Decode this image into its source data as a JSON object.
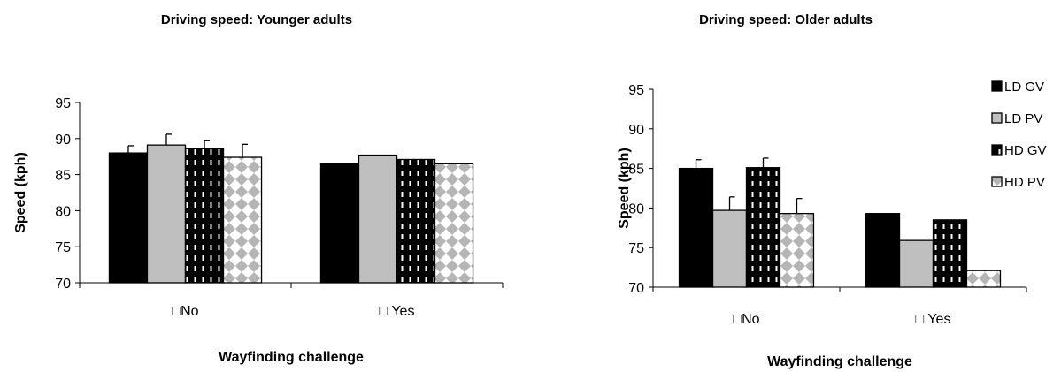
{
  "colors": {
    "ld_gv": "#000000",
    "ld_pv": "#bfbfbf",
    "hd_gv": "pattern-black-white-dashes",
    "hd_pv": "pattern-gray-white-diamonds"
  },
  "chart_data": [
    {
      "type": "bar",
      "title": "Driving speed: Younger adults",
      "xlabel": "Wayfinding challenge",
      "ylabel": "Speed (kph)",
      "ylim": [
        70,
        95
      ],
      "yticks": [
        "70",
        "75",
        "80",
        "85",
        "90",
        "95"
      ],
      "categories": [
        "□No",
        "□ Yes"
      ],
      "series": [
        {
          "name": "LD GV",
          "values": [
            88.0,
            86.5
          ],
          "errors": [
            1.0,
            null
          ]
        },
        {
          "name": "LD PV",
          "values": [
            89.1,
            87.7
          ],
          "errors": [
            1.5,
            null
          ]
        },
        {
          "name": "HD GV",
          "values": [
            88.6,
            87.1
          ],
          "errors": [
            1.1,
            null
          ]
        },
        {
          "name": "HD PV",
          "values": [
            87.4,
            86.5
          ],
          "errors": [
            1.8,
            null
          ]
        }
      ],
      "legend": false,
      "grid": false
    },
    {
      "type": "bar",
      "title": "Driving speed: Older adults",
      "xlabel": "Wayfinding challenge",
      "ylabel": "Speed (kph)",
      "ylim": [
        70,
        95
      ],
      "yticks": [
        "70",
        "75",
        "80",
        "85",
        "90",
        "95"
      ],
      "categories": [
        "□No",
        "□ Yes"
      ],
      "series": [
        {
          "name": "LD GV",
          "values": [
            85.0,
            79.3
          ],
          "errors": [
            1.1,
            null
          ]
        },
        {
          "name": "LD PV",
          "values": [
            79.7,
            75.9
          ],
          "errors": [
            1.7,
            null
          ]
        },
        {
          "name": "HD GV",
          "values": [
            85.1,
            78.5
          ],
          "errors": [
            1.2,
            null
          ]
        },
        {
          "name": "HD PV",
          "values": [
            79.3,
            72.1
          ],
          "errors": [
            1.9,
            null
          ]
        }
      ],
      "legend": "right",
      "grid": false
    }
  ]
}
